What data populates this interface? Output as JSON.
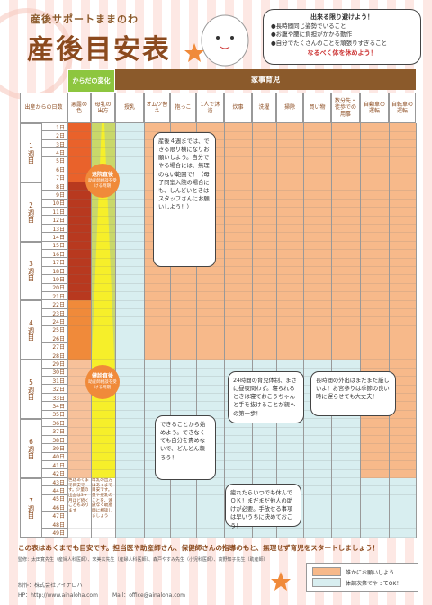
{
  "header": {
    "brand": "産後サポートままのわ",
    "title": "産後目安表"
  },
  "notice": {
    "heading": "出来る限り避けよう！",
    "items": [
      "●長時間同じ姿勢でいること",
      "●お腹や腰に負担がかかる動作",
      "●自分でたくさんのことを頑張りすぎること"
    ],
    "footer": "なるべく体を休めよう！"
  },
  "table": {
    "body_header": "からだの変化",
    "chores_header": "家事育児",
    "columns": [
      "出産からの日数",
      "悪露の色",
      "母乳の出方",
      "授乳",
      "オムツ替え",
      "抱っこ",
      "1人で沐浴",
      "炊事",
      "洗濯",
      "掃除",
      "買い物",
      "数分先・徒歩での用事",
      "自動車の運転",
      "自転車の運転"
    ],
    "weeks": [
      "1週目",
      "2週目",
      "3週目",
      "4週目",
      "5週目",
      "6週目",
      "7週目"
    ],
    "days": [
      "1日",
      "2日",
      "3日",
      "4日",
      "5日",
      "6日",
      "7日",
      "8日",
      "9日",
      "10日",
      "11日",
      "12日",
      "13日",
      "14日",
      "15日",
      "16日",
      "17日",
      "18日",
      "19日",
      "20日",
      "21日",
      "22日",
      "23日",
      "24日",
      "25日",
      "26日",
      "27日",
      "28日",
      "29日",
      "30日",
      "31日",
      "32日",
      "33日",
      "34日",
      "35日",
      "36日",
      "37日",
      "38日",
      "39日",
      "40日",
      "41日",
      "42日",
      "43日",
      "44日",
      "45日",
      "46日",
      "47日",
      "48日",
      "49日"
    ],
    "labels": [
      {
        "title": "退院直後",
        "note": "助産師相談を受ける時期"
      },
      {
        "title": "健診直後",
        "note": "助産師相談を受ける時期"
      }
    ],
    "lochia_note": "色はあくまで目安です。少量の出血は3ヶ月ほど続くこともあります",
    "milk_note": "母乳の出方はあくまで目安です。量や授乳のことを、遠慮なく助産師に相談しましょう"
  },
  "bubbles": [
    "産後４週までは、できる限り横になりお願いしよう。自分でやる場合には、無理のない範囲で！（母子同室入院の場合にも、しんどいときはスタッフさんにお願いしよう！）",
    "24時間の育児体制、まさに昼夜問わず。寝られるときは寝ておこうちゃんと手を抜けることが親への第一歩！",
    "長時間の外出はまだまだ厳しいよ！お宮参りは季節の良い時に遅らせても大丈夫！",
    "できることから始めよう。できなくても自分を責めないで、どんどん頼ろう！",
    "疲れたらいつでも休んでＯＫ！まだまだ他人の助けが必要。手放せる事項は早いうちに決めておこう！"
  ],
  "footer": {
    "message": "この表はあくまでも目安です。担当医や助産師さん、保健師さんの指導のもと、無理せず育児をスタートしましょう！",
    "supervisors": "監修：太田寛先生（産婦人科医師）、宋美玄先生（産婦人科医師）、森戸やすみ先生（小児科医師）、高野知子先生（助産師）",
    "legend": [
      "誰かにお願いしよう",
      "体調次第でやってOK！"
    ],
    "producer": "制作：株式会社アイナロハ",
    "hp": "HP：http://www.ainaloha.com",
    "mail": "Mail：office@ainaloha.com"
  }
}
